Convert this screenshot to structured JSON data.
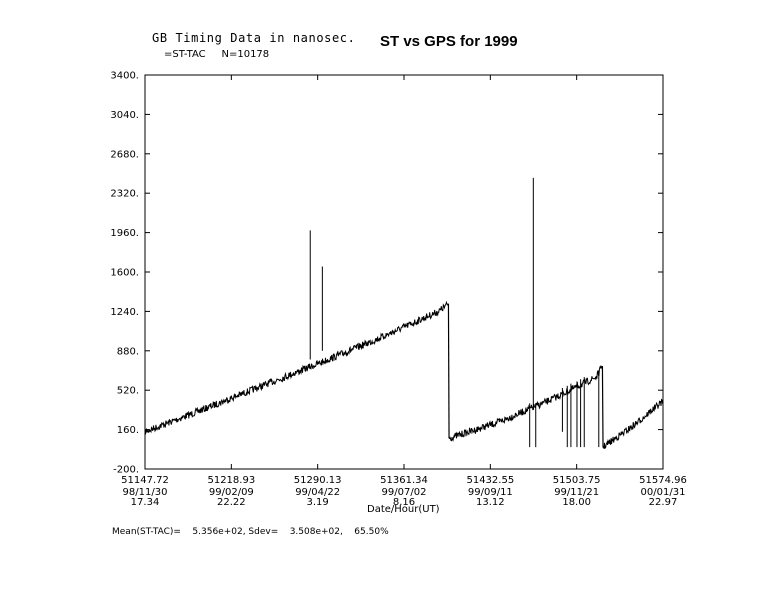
{
  "header": {
    "heading": "GB Timing Data in nanosec.",
    "subheading": "=ST-TAC     N=10178",
    "title": "ST vs GPS for 1999"
  },
  "footer": {
    "stats": "Mean(ST-TAC)=    5.356e+02, Sdev=    3.508e+02,    65.50%"
  },
  "chart_data": {
    "type": "line",
    "title": "ST vs GPS for 1999",
    "xlabel": "Date/Hour(UT)",
    "ylabel": "",
    "xlim": [
      51147.72,
      51574.96
    ],
    "ylim": [
      -200,
      3400
    ],
    "yticks": [
      "3400.",
      "3040.",
      "2680.",
      "2320.",
      "1960.",
      "1600.",
      "1240.",
      "880.",
      "520.",
      "160.",
      "-200."
    ],
    "yticks_values": [
      3400,
      3040,
      2680,
      2320,
      1960,
      1600,
      1240,
      880,
      520,
      160,
      -200
    ],
    "xticks": [
      {
        "value": 51147.72,
        "mjd": "51147.72",
        "date": "98/11/30",
        "hour": "17.34"
      },
      {
        "value": 51218.93,
        "mjd": "51218.93",
        "date": "99/02/09",
        "hour": "22.22"
      },
      {
        "value": 51290.13,
        "mjd": "51290.13",
        "date": "99/04/22",
        "hour": "3.19"
      },
      {
        "value": 51361.34,
        "mjd": "51361.34",
        "date": "99/07/02",
        "hour": "8.16"
      },
      {
        "value": 51432.55,
        "mjd": "51432.55",
        "date": "99/09/11",
        "hour": "13.12"
      },
      {
        "value": 51503.75,
        "mjd": "51503.75",
        "date": "99/11/21",
        "hour": "18.00"
      },
      {
        "value": 51574.96,
        "mjd": "51574.96",
        "date": "00/01/31",
        "hour": "22.97"
      }
    ],
    "series": [
      {
        "values": [
          [
            51147.72,
            140
          ],
          [
            51190,
            320
          ],
          [
            51240,
            540
          ],
          [
            51290,
            760
          ],
          [
            51340,
            990
          ],
          [
            51390,
            1240
          ],
          [
            51398,
            1310
          ]
        ]
      },
      {
        "values": [
          [
            51398.5,
            80
          ],
          [
            51440,
            230
          ],
          [
            51480,
            420
          ],
          [
            51520,
            640
          ],
          [
            51525,
            740
          ]
        ]
      },
      {
        "values": [
          [
            51525.5,
            0
          ],
          [
            51550,
            190
          ],
          [
            51574.96,
            420
          ]
        ]
      }
    ],
    "spikes": [
      {
        "x": 51284,
        "from": 800,
        "to": 1980
      },
      {
        "x": 51294,
        "from": 880,
        "to": 1650
      },
      {
        "x": 51468,
        "from": 360,
        "to": 2460
      },
      {
        "x": 51465,
        "from": 400,
        "to": 0
      },
      {
        "x": 51470,
        "from": 400,
        "to": 0
      },
      {
        "x": 51492,
        "from": 540,
        "to": 140
      },
      {
        "x": 51496,
        "from": 560,
        "to": 0
      },
      {
        "x": 51499,
        "from": 580,
        "to": 0
      },
      {
        "x": 51504,
        "from": 600,
        "to": 0
      },
      {
        "x": 51507,
        "from": 620,
        "to": 0
      },
      {
        "x": 51510,
        "from": 640,
        "to": 0
      },
      {
        "x": 51522,
        "from": 700,
        "to": 0
      }
    ],
    "grid": false,
    "legend": "none"
  }
}
